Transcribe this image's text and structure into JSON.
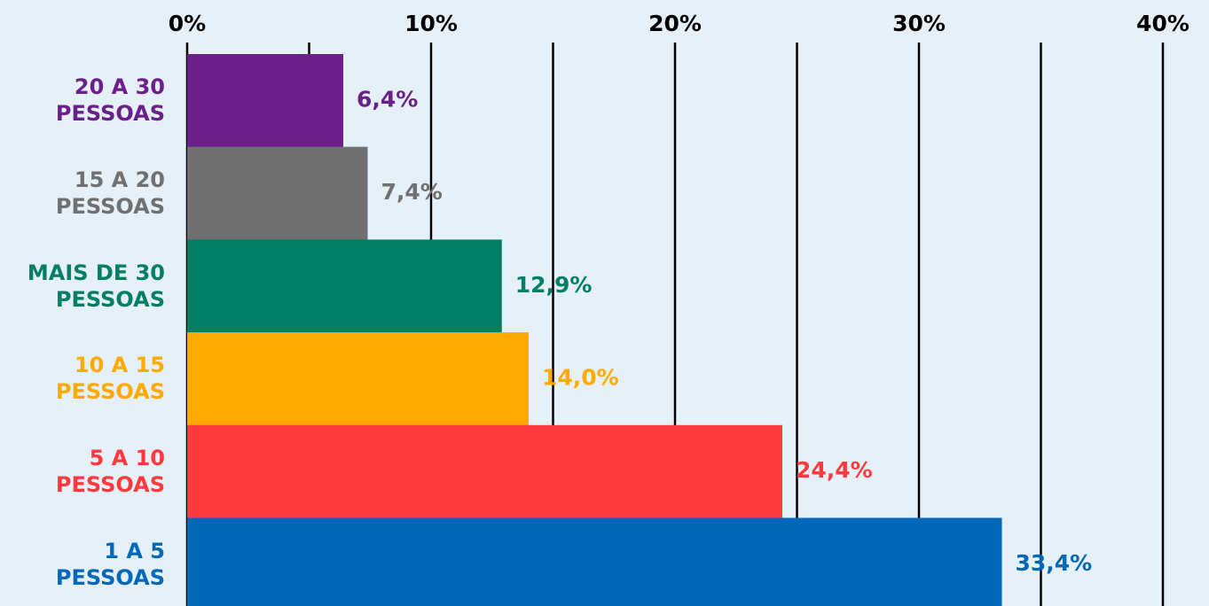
{
  "chart_data": {
    "type": "bar",
    "orientation": "horizontal",
    "categories": [
      "20 A 30\nPESSOAS",
      "15 A 20\nPESSOAS",
      "MAIS DE 30\nPESSOAS",
      "10 A 15\nPESSOAS",
      "5 A 10\nPESSOAS",
      "1 A 5\nPESSOAS"
    ],
    "values": [
      6.4,
      7.4,
      12.9,
      14.0,
      24.4,
      33.4
    ],
    "value_labels": [
      "6,4%",
      "7,4%",
      "12,9%",
      "14,0%",
      "24,4%",
      "33,4%"
    ],
    "colors": [
      "#6a1f8a",
      "#707070",
      "#007e66",
      "#ffaa00",
      "#ff3a3f",
      "#0068b8"
    ],
    "xlim": [
      0,
      40
    ],
    "xticks": [
      {
        "value": 0,
        "label": "0%"
      },
      {
        "value": 10,
        "label": "10%"
      },
      {
        "value": 20,
        "label": "20%"
      },
      {
        "value": 30,
        "label": "30%"
      },
      {
        "value": 40,
        "label": "40%"
      }
    ],
    "minor_xticks": [
      5,
      15,
      25,
      35
    ],
    "grid": true
  }
}
